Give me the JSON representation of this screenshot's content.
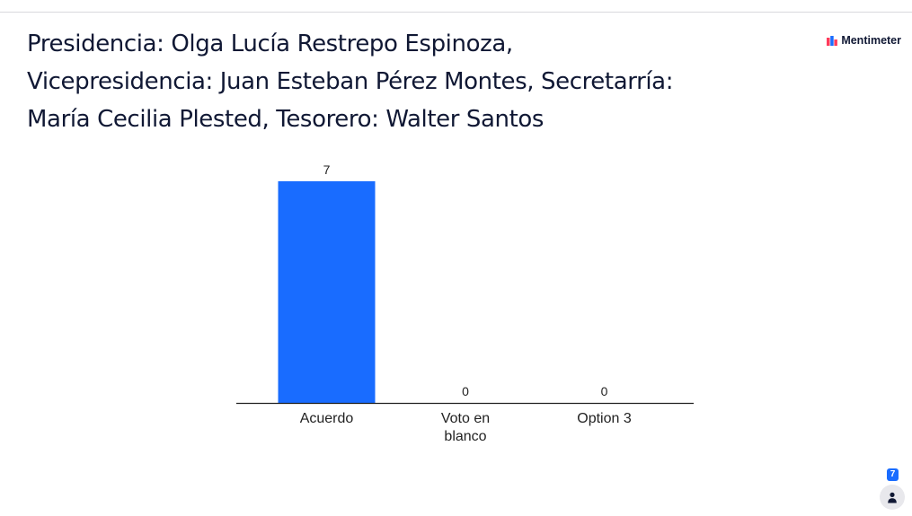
{
  "question": {
    "title_lines": [
      "Presidencia: Olga Lucía Restrepo Espinoza,",
      "Vicepresidencia: Juan Esteban Pérez Montes, Secretarría:",
      "María Cecilia Plested, Tesorero: Walter Santos"
    ]
  },
  "brand": {
    "name": "Mentimeter",
    "icon": "mentimeter-logo-icon"
  },
  "colors": {
    "bar": "#196cff",
    "title": "#101834",
    "axis": "#222222",
    "badge": "#196cff"
  },
  "chart_data": {
    "type": "bar",
    "categories": [
      [
        "Acuerdo"
      ],
      [
        "Voto en",
        "blanco"
      ],
      [
        "Option 3"
      ]
    ],
    "values": [
      7,
      0,
      0
    ],
    "value_labels": [
      "7",
      "0",
      "0"
    ],
    "grid": false,
    "ylim": [
      0,
      7
    ]
  },
  "participants": {
    "count": "7",
    "icon": "person-icon"
  }
}
